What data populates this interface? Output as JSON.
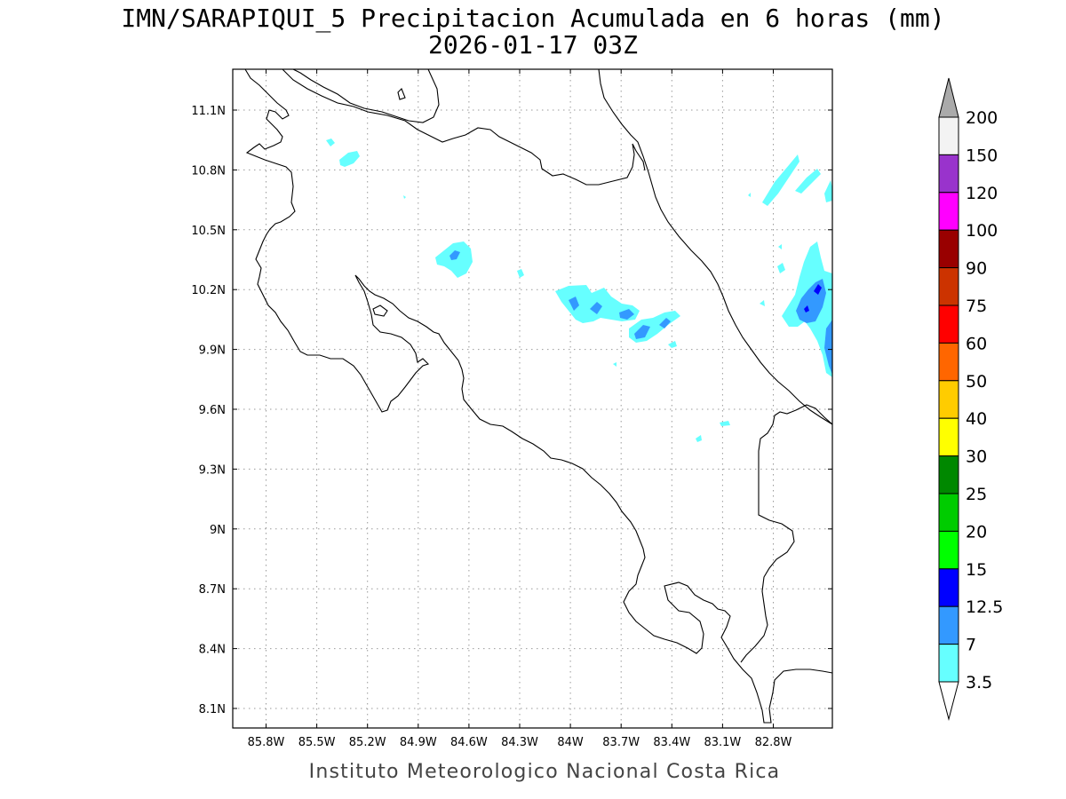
{
  "header": {
    "title_line1": "IMN/SARAPIQUI_5 Precipitacion Acumulada en 6 horas (mm)",
    "title_line2": "2026-01-17 03Z"
  },
  "axes": {
    "lon_ticks": [
      "85.8W",
      "85.5W",
      "85.2W",
      "84.9W",
      "84.6W",
      "84.3W",
      "84W",
      "83.7W",
      "83.4W",
      "83.1W",
      "82.8W"
    ],
    "lat_ticks": [
      "11.1N",
      "10.8N",
      "10.5N",
      "10.2N",
      "9.9N",
      "9.6N",
      "9.3N",
      "9N",
      "8.7N",
      "8.4N",
      "8.1N"
    ]
  },
  "legend": {
    "levels": [
      "200",
      "150",
      "120",
      "100",
      "90",
      "75",
      "60",
      "50",
      "40",
      "30",
      "25",
      "20",
      "15",
      "12.5",
      "7",
      "3.5"
    ],
    "colors": [
      "#f3f3f3",
      "#9933cc",
      "#ff00ff",
      "#990000",
      "#cc3300",
      "#ff0000",
      "#ff6600",
      "#ffcc00",
      "#ffff00",
      "#008800",
      "#00cc00",
      "#00ff00",
      "#0000ff",
      "#3399ff",
      "#66ffff"
    ],
    "top_arrow_color": "#aaaaaa"
  },
  "footer": {
    "credit": "Instituto Meteorologico Nacional Costa Rica"
  }
}
